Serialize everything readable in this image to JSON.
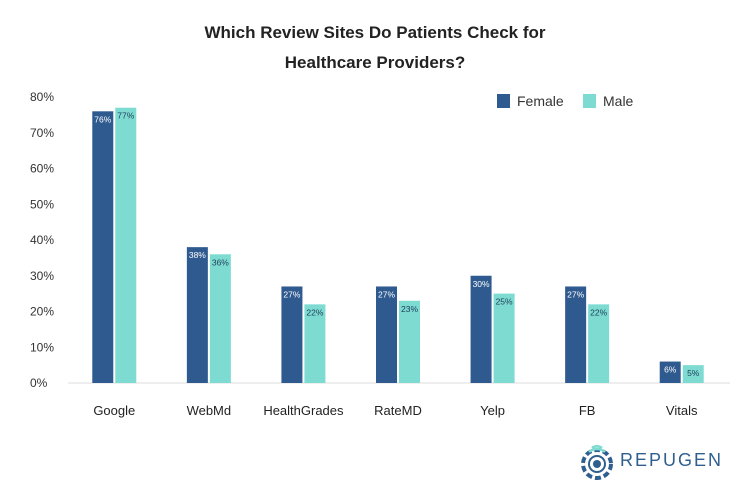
{
  "chart_data": {
    "type": "bar",
    "title_lines": [
      "Which Review Sites Do Patients Check for",
      "Healthcare Providers?"
    ],
    "categories": [
      "Google",
      "WebMd",
      "HealthGrades",
      "RateMD",
      "Yelp",
      "FB",
      "Vitals"
    ],
    "series": [
      {
        "name": "Female",
        "color": "#2f5a8f",
        "values": [
          76,
          38,
          27,
          27,
          30,
          27,
          6
        ]
      },
      {
        "name": "Male",
        "color": "#7ddbd1",
        "values": [
          77,
          36,
          22,
          23,
          25,
          22,
          5
        ]
      }
    ],
    "ylim": [
      0,
      80
    ],
    "yticks": [
      "0%",
      "10%",
      "20%",
      "30%",
      "40%",
      "50%",
      "60%",
      "70%",
      "80%"
    ],
    "value_suffix": "%",
    "legend_position": "top-right",
    "grid": false
  },
  "brand": {
    "name": "REPUGEN",
    "color": "#2f5f8f"
  }
}
